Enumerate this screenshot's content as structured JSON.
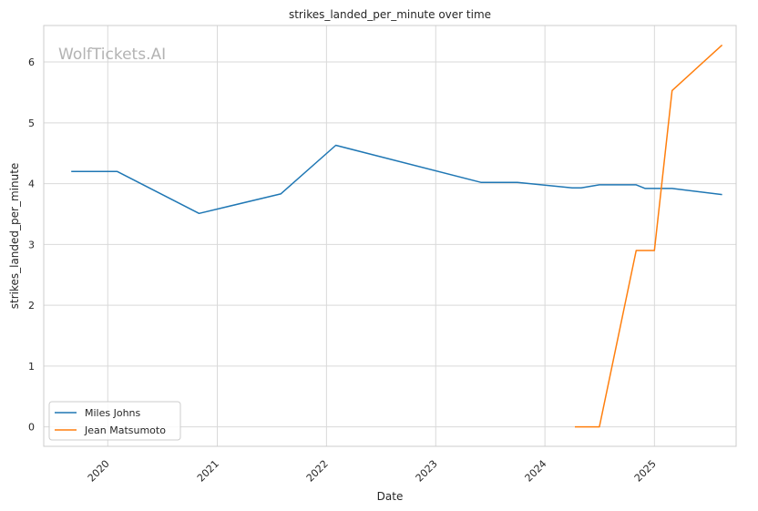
{
  "chart_data": {
    "type": "line",
    "title": "strikes_landed_per_minute over time",
    "xlabel": "Date",
    "ylabel": "strikes_landed_per_minute",
    "watermark": "WolfTickets.AI",
    "x_ticks": [
      "2020",
      "2021",
      "2022",
      "2023",
      "2024",
      "2025"
    ],
    "y_ticks": [
      "0",
      "1",
      "2",
      "3",
      "4",
      "5",
      "6"
    ],
    "xlim": [
      "2019-06-01",
      "2025-10-01"
    ],
    "ylim": [
      -0.32,
      6.6
    ],
    "grid": true,
    "legend_position": "lower-left",
    "series": [
      {
        "name": "Miles Johns",
        "color": "#1f77b4",
        "points": [
          [
            "2019-09-01",
            4.2
          ],
          [
            "2020-02-01",
            4.2
          ],
          [
            "2020-11-01",
            3.51
          ],
          [
            "2021-08-01",
            3.83
          ],
          [
            "2022-02-01",
            4.63
          ],
          [
            "2023-06-01",
            4.02
          ],
          [
            "2023-10-01",
            4.02
          ],
          [
            "2024-04-01",
            3.93
          ],
          [
            "2024-05-01",
            3.93
          ],
          [
            "2024-07-01",
            3.98
          ],
          [
            "2024-11-01",
            3.98
          ],
          [
            "2024-12-01",
            3.92
          ],
          [
            "2025-03-01",
            3.92
          ],
          [
            "2025-08-15",
            3.82
          ]
        ]
      },
      {
        "name": "Jean Matsumoto",
        "color": "#ff7f0e",
        "points": [
          [
            "2024-04-10",
            0.0
          ],
          [
            "2024-07-01",
            0.0
          ],
          [
            "2024-11-01",
            2.9
          ],
          [
            "2025-01-01",
            2.9
          ],
          [
            "2025-03-01",
            5.53
          ],
          [
            "2025-08-15",
            6.28
          ]
        ]
      }
    ]
  }
}
